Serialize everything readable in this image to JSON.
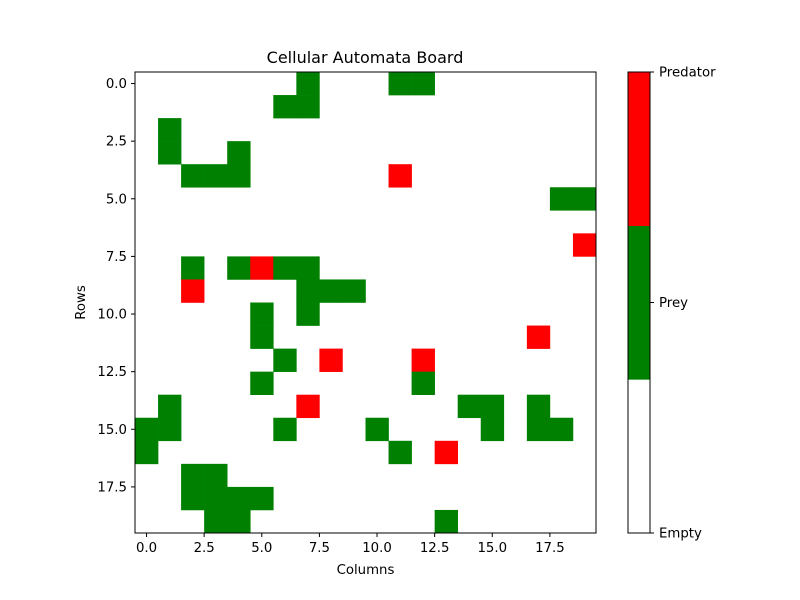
{
  "chart_data": {
    "type": "heatmap",
    "title": "Cellular Automata Board",
    "xlabel": "Columns",
    "ylabel": "Rows",
    "rows": 20,
    "cols": 20,
    "xlim": [
      -0.5,
      19.5
    ],
    "ylim": [
      19.5,
      -0.5
    ],
    "x_ticks": [
      0,
      2.5,
      5,
      7.5,
      10,
      12.5,
      15,
      17.5
    ],
    "x_tick_labels": [
      "0.0",
      "2.5",
      "5.0",
      "7.5",
      "10.0",
      "12.5",
      "15.0",
      "17.5"
    ],
    "y_ticks": [
      0,
      2.5,
      5,
      7.5,
      10,
      12.5,
      15,
      17.5
    ],
    "y_tick_labels": [
      "0.0",
      "2.5",
      "5.0",
      "7.5",
      "10.0",
      "12.5",
      "15.0",
      "17.5"
    ],
    "grid": false,
    "legend": "colorbar-right",
    "states": [
      {
        "value": 0,
        "label": "Empty",
        "color": "#ffffff"
      },
      {
        "value": 1,
        "label": "Prey",
        "color": "#008000"
      },
      {
        "value": 2,
        "label": "Predator",
        "color": "#ff0000"
      }
    ],
    "grid_values": [
      [
        0,
        0,
        0,
        0,
        0,
        0,
        0,
        1,
        0,
        0,
        0,
        1,
        1,
        0,
        0,
        0,
        0,
        0,
        0,
        0
      ],
      [
        0,
        0,
        0,
        0,
        0,
        0,
        1,
        1,
        0,
        0,
        0,
        0,
        0,
        0,
        0,
        0,
        0,
        0,
        0,
        0
      ],
      [
        0,
        1,
        0,
        0,
        0,
        0,
        0,
        0,
        0,
        0,
        0,
        0,
        0,
        0,
        0,
        0,
        0,
        0,
        0,
        0
      ],
      [
        0,
        1,
        0,
        0,
        1,
        0,
        0,
        0,
        0,
        0,
        0,
        0,
        0,
        0,
        0,
        0,
        0,
        0,
        0,
        0
      ],
      [
        0,
        0,
        1,
        1,
        1,
        0,
        0,
        0,
        0,
        0,
        0,
        2,
        0,
        0,
        0,
        0,
        0,
        0,
        0,
        0
      ],
      [
        0,
        0,
        0,
        0,
        0,
        0,
        0,
        0,
        0,
        0,
        0,
        0,
        0,
        0,
        0,
        0,
        0,
        0,
        1,
        1
      ],
      [
        0,
        0,
        0,
        0,
        0,
        0,
        0,
        0,
        0,
        0,
        0,
        0,
        0,
        0,
        0,
        0,
        0,
        0,
        0,
        0
      ],
      [
        0,
        0,
        0,
        0,
        0,
        0,
        0,
        0,
        0,
        0,
        0,
        0,
        0,
        0,
        0,
        0,
        0,
        0,
        0,
        2
      ],
      [
        0,
        0,
        1,
        0,
        1,
        2,
        1,
        1,
        0,
        0,
        0,
        0,
        0,
        0,
        0,
        0,
        0,
        0,
        0,
        0
      ],
      [
        0,
        0,
        2,
        0,
        0,
        0,
        0,
        1,
        1,
        1,
        0,
        0,
        0,
        0,
        0,
        0,
        0,
        0,
        0,
        0
      ],
      [
        0,
        0,
        0,
        0,
        0,
        1,
        0,
        1,
        0,
        0,
        0,
        0,
        0,
        0,
        0,
        0,
        0,
        0,
        0,
        0
      ],
      [
        0,
        0,
        0,
        0,
        0,
        1,
        0,
        0,
        0,
        0,
        0,
        0,
        0,
        0,
        0,
        0,
        0,
        2,
        0,
        0
      ],
      [
        0,
        0,
        0,
        0,
        0,
        0,
        1,
        0,
        2,
        0,
        0,
        0,
        2,
        0,
        0,
        0,
        0,
        0,
        0,
        0
      ],
      [
        0,
        0,
        0,
        0,
        0,
        1,
        0,
        0,
        0,
        0,
        0,
        0,
        1,
        0,
        0,
        0,
        0,
        0,
        0,
        0
      ],
      [
        0,
        1,
        0,
        0,
        0,
        0,
        0,
        2,
        0,
        0,
        0,
        0,
        0,
        0,
        1,
        1,
        0,
        1,
        0,
        0
      ],
      [
        1,
        1,
        0,
        0,
        0,
        0,
        1,
        0,
        0,
        0,
        1,
        0,
        0,
        0,
        0,
        1,
        0,
        1,
        1,
        0
      ],
      [
        1,
        0,
        0,
        0,
        0,
        0,
        0,
        0,
        0,
        0,
        0,
        1,
        0,
        2,
        0,
        0,
        0,
        0,
        0,
        0
      ],
      [
        0,
        0,
        1,
        1,
        0,
        0,
        0,
        0,
        0,
        0,
        0,
        0,
        0,
        0,
        0,
        0,
        0,
        0,
        0,
        0
      ],
      [
        0,
        0,
        1,
        1,
        1,
        1,
        0,
        0,
        0,
        0,
        0,
        0,
        0,
        0,
        0,
        0,
        0,
        0,
        0,
        0
      ],
      [
        0,
        0,
        0,
        1,
        1,
        0,
        0,
        0,
        0,
        0,
        0,
        0,
        0,
        1,
        0,
        0,
        0,
        0,
        0,
        0
      ]
    ]
  }
}
